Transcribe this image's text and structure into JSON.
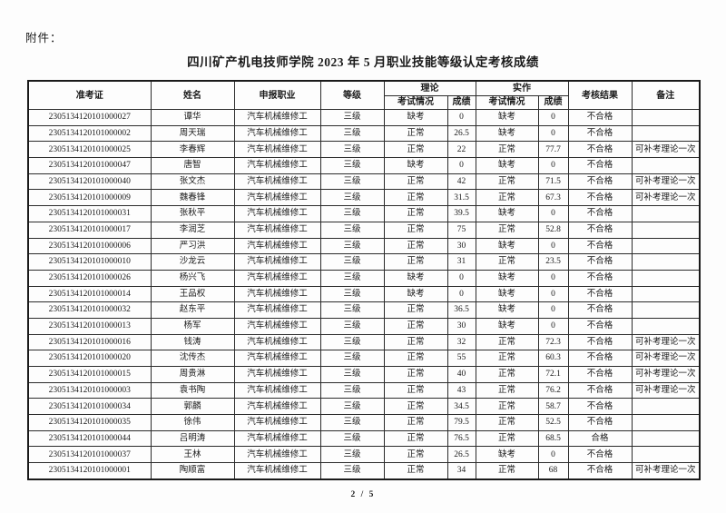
{
  "page": {
    "attachment_label": "附件：",
    "title": "四川矿产机电技师学院 2023 年 5 月职业技能等级认定考核成绩",
    "page_number": "2 / 5"
  },
  "table": {
    "headers": {
      "admission_no": "准考证",
      "name": "姓名",
      "occupation": "申报职业",
      "level": "等级",
      "theory_group": "理论",
      "practical_group": "实作",
      "exam_status": "考试情况",
      "score": "成绩",
      "result": "考核结果",
      "remark": "备注"
    },
    "rows": [
      [
        "2305134120101000027",
        "谭华",
        "汽车机械维修工",
        "三级",
        "缺考",
        "0",
        "缺考",
        "0",
        "不合格",
        ""
      ],
      [
        "2305134120101000002",
        "周天瑞",
        "汽车机械维修工",
        "三级",
        "正常",
        "26.5",
        "缺考",
        "0",
        "不合格",
        ""
      ],
      [
        "2305134120101000025",
        "李春辉",
        "汽车机械维修工",
        "三级",
        "正常",
        "22",
        "正常",
        "77.7",
        "不合格",
        "可补考理论一次"
      ],
      [
        "2305134120101000047",
        "唐智",
        "汽车机械维修工",
        "三级",
        "缺考",
        "0",
        "缺考",
        "0",
        "不合格",
        ""
      ],
      [
        "2305134120101000040",
        "张文杰",
        "汽车机械维修工",
        "三级",
        "正常",
        "42",
        "正常",
        "71.5",
        "不合格",
        "可补考理论一次"
      ],
      [
        "2305134120101000009",
        "魏春锋",
        "汽车机械维修工",
        "三级",
        "正常",
        "31.5",
        "正常",
        "67.3",
        "不合格",
        "可补考理论一次"
      ],
      [
        "2305134120101000031",
        "张秋平",
        "汽车机械维修工",
        "三级",
        "正常",
        "39.5",
        "缺考",
        "0",
        "不合格",
        ""
      ],
      [
        "2305134120101000017",
        "李润芝",
        "汽车机械维修工",
        "三级",
        "正常",
        "75",
        "正常",
        "52.8",
        "不合格",
        ""
      ],
      [
        "2305134120101000006",
        "严习洪",
        "汽车机械维修工",
        "三级",
        "正常",
        "30",
        "缺考",
        "0",
        "不合格",
        ""
      ],
      [
        "2305134120101000010",
        "沙龙云",
        "汽车机械维修工",
        "三级",
        "正常",
        "31",
        "正常",
        "23.5",
        "不合格",
        ""
      ],
      [
        "2305134120101000026",
        "杨兴飞",
        "汽车机械维修工",
        "三级",
        "缺考",
        "0",
        "缺考",
        "0",
        "不合格",
        ""
      ],
      [
        "2305134120101000014",
        "王品权",
        "汽车机械维修工",
        "三级",
        "缺考",
        "0",
        "缺考",
        "0",
        "不合格",
        ""
      ],
      [
        "2305134120101000032",
        "赵东平",
        "汽车机械维修工",
        "三级",
        "正常",
        "36.5",
        "缺考",
        "0",
        "不合格",
        ""
      ],
      [
        "2305134120101000013",
        "杨军",
        "汽车机械维修工",
        "三级",
        "正常",
        "30",
        "缺考",
        "0",
        "不合格",
        ""
      ],
      [
        "2305134120101000016",
        "钱涛",
        "汽车机械维修工",
        "三级",
        "正常",
        "32",
        "正常",
        "72.3",
        "不合格",
        "可补考理论一次"
      ],
      [
        "2305134120101000020",
        "沈传杰",
        "汽车机械维修工",
        "三级",
        "正常",
        "55",
        "正常",
        "60.3",
        "不合格",
        "可补考理论一次"
      ],
      [
        "2305134120101000015",
        "周贵淋",
        "汽车机械维修工",
        "三级",
        "正常",
        "40",
        "正常",
        "72.1",
        "不合格",
        "可补考理论一次"
      ],
      [
        "2305134120101000003",
        "袁书陶",
        "汽车机械维修工",
        "三级",
        "正常",
        "43",
        "正常",
        "76.2",
        "不合格",
        "可补考理论一次"
      ],
      [
        "2305134120101000034",
        "郭麟",
        "汽车机械维修工",
        "三级",
        "正常",
        "34.5",
        "正常",
        "58.7",
        "不合格",
        ""
      ],
      [
        "2305134120101000035",
        "徐伟",
        "汽车机械维修工",
        "三级",
        "正常",
        "79.5",
        "正常",
        "52.5",
        "不合格",
        ""
      ],
      [
        "2305134120101000044",
        "吕明涛",
        "汽车机械维修工",
        "三级",
        "正常",
        "76.5",
        "正常",
        "68.5",
        "合格",
        ""
      ],
      [
        "2305134120101000037",
        "王林",
        "汽车机械维修工",
        "三级",
        "正常",
        "26.5",
        "缺考",
        "0",
        "不合格",
        ""
      ],
      [
        "2305134120101000001",
        "陶顺富",
        "汽车机械维修工",
        "三级",
        "正常",
        "34",
        "正常",
        "68",
        "不合格",
        "可补考理论一次"
      ]
    ]
  }
}
